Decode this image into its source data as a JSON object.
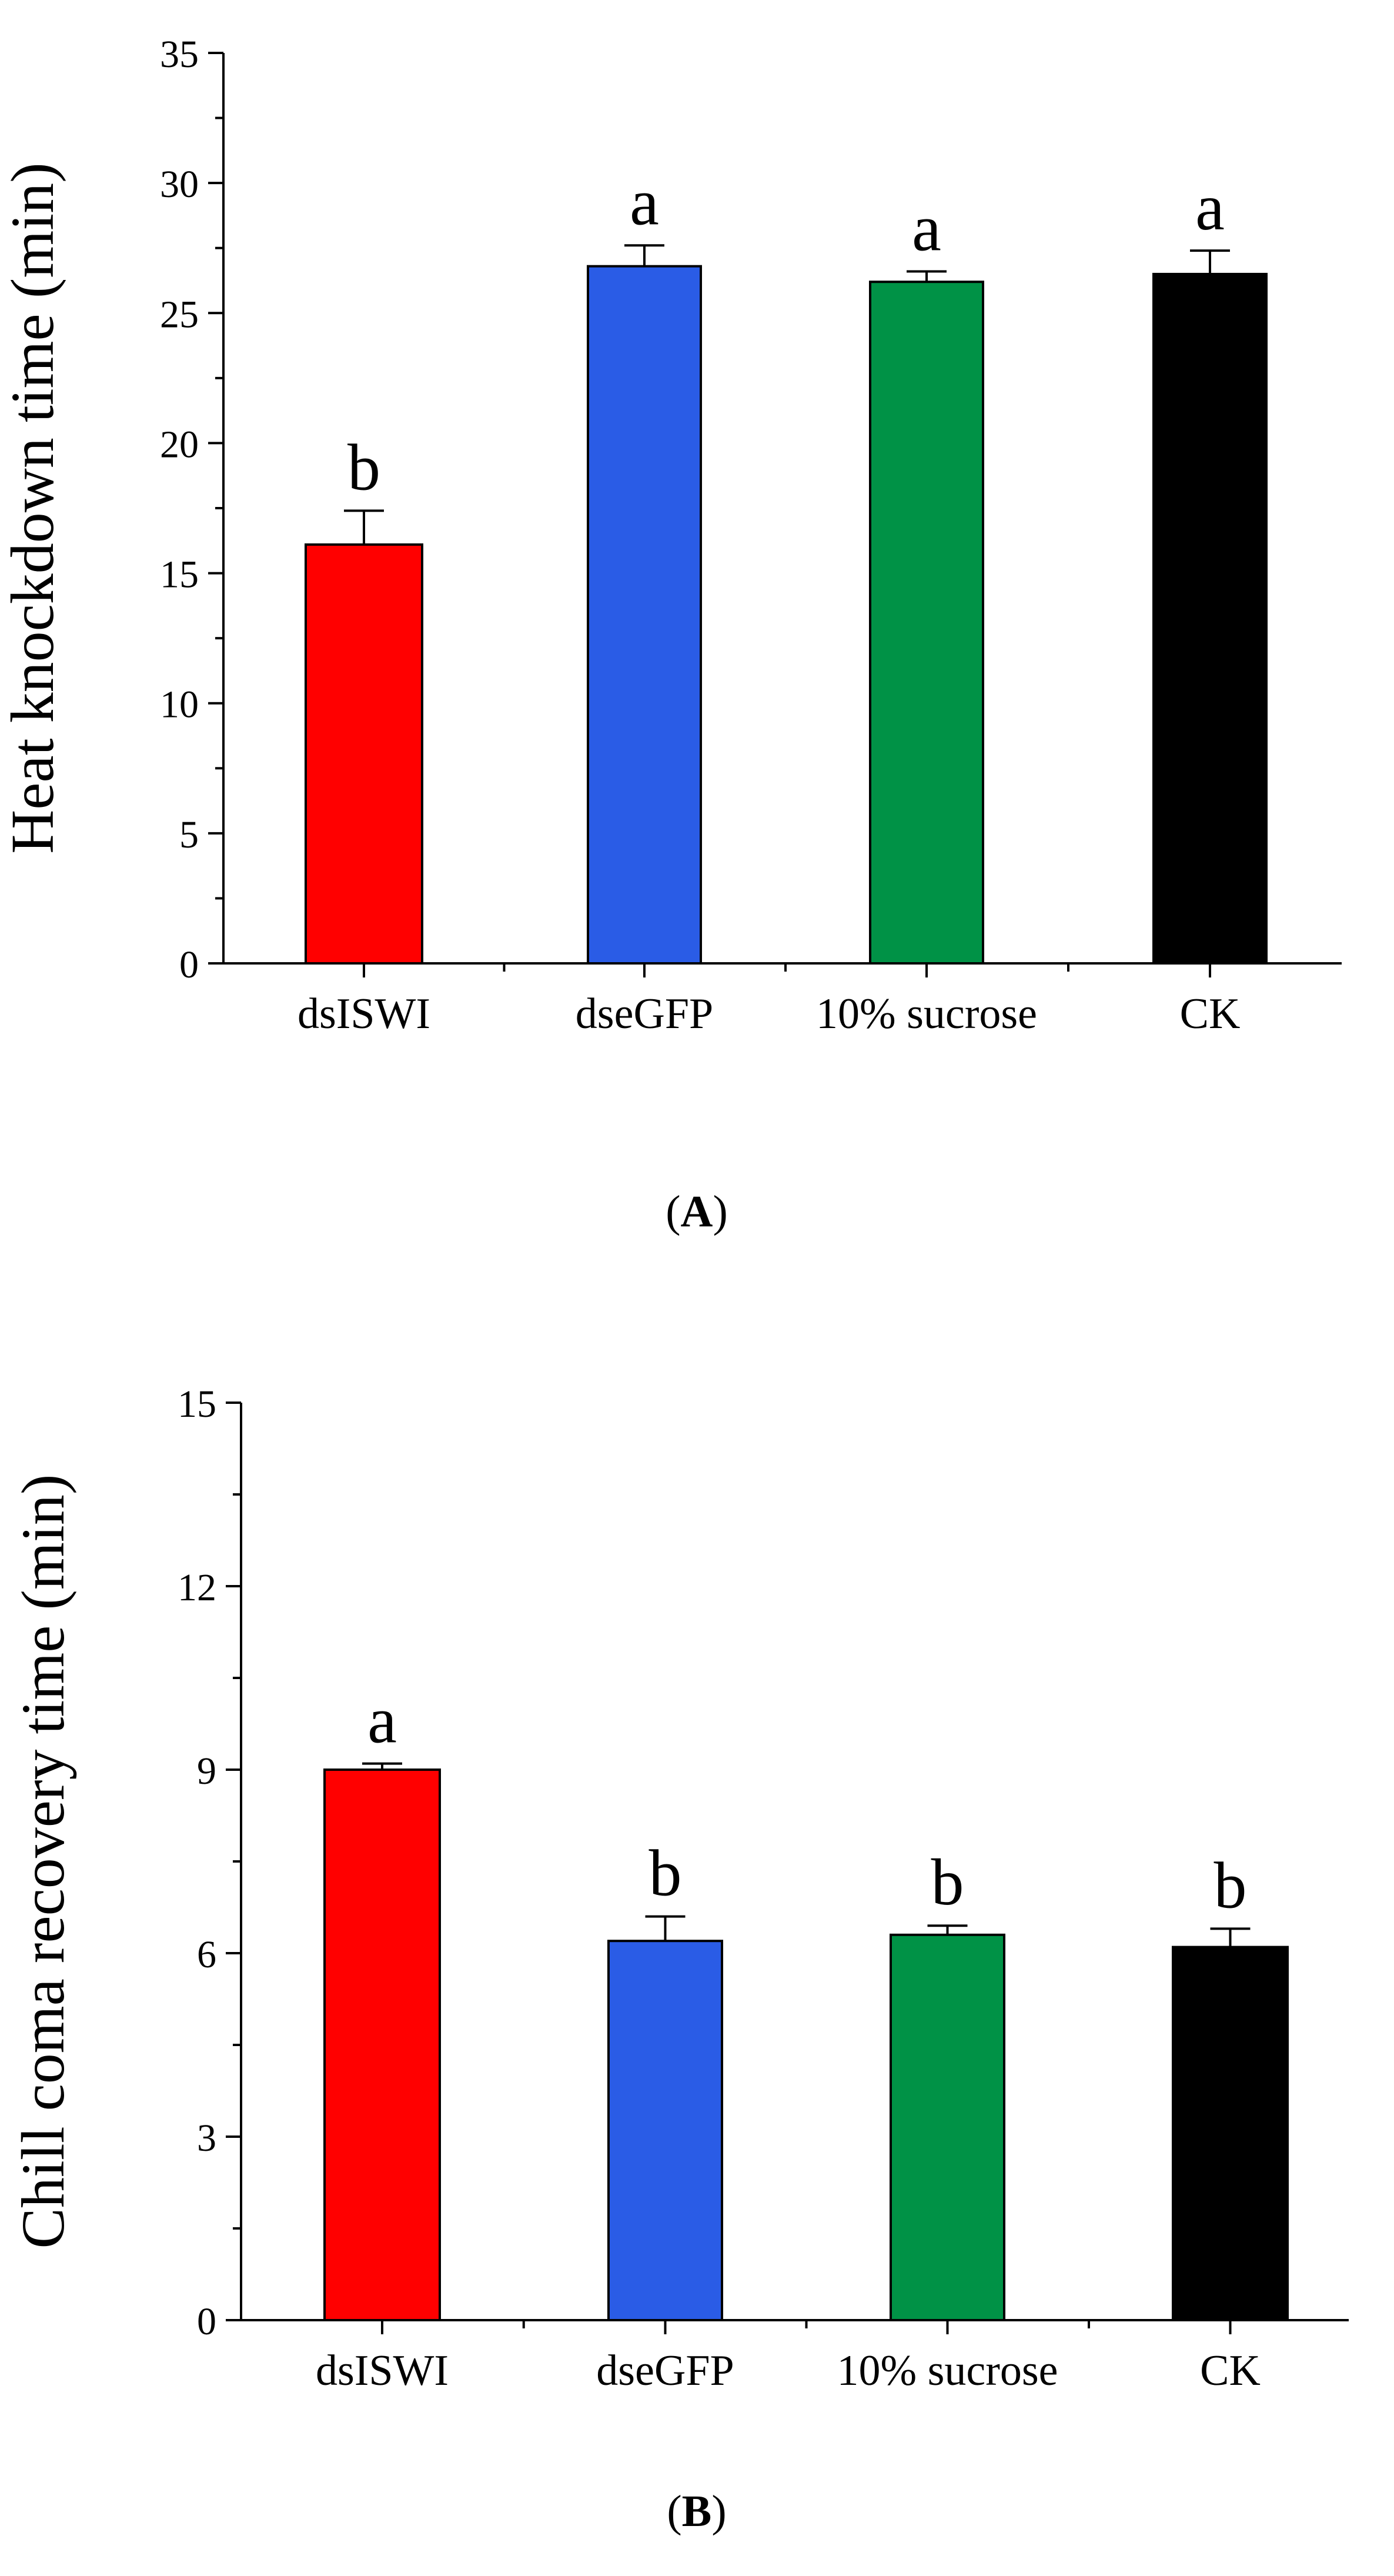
{
  "chart_data": [
    {
      "panel": "A",
      "type": "bar",
      "ylabel": "Heat knockdown time (min)",
      "xlabel": "",
      "ylim": [
        0,
        35
      ],
      "yticks": [
        0,
        5,
        10,
        15,
        20,
        25,
        30,
        35
      ],
      "categories": [
        "dsISWI",
        "dseGFP",
        "10% sucrose",
        "CK"
      ],
      "values": [
        16.1,
        26.8,
        26.2,
        26.5
      ],
      "errors": [
        1.3,
        0.8,
        0.4,
        0.9
      ],
      "letters": [
        "b",
        "a",
        "a",
        "a"
      ],
      "colors": [
        "#ff0000",
        "#2a5ce6",
        "#009246",
        "#000000"
      ],
      "caption_open": "(",
      "caption_letter": "A",
      "caption_close": ")"
    },
    {
      "panel": "B",
      "type": "bar",
      "ylabel": "Chill coma recovery time (min)",
      "xlabel": "",
      "ylim": [
        0,
        15
      ],
      "yticks": [
        0,
        3,
        6,
        9,
        12,
        15
      ],
      "categories": [
        "dsISWI",
        "dseGFP",
        "10% sucrose",
        "CK"
      ],
      "values": [
        9.0,
        6.2,
        6.3,
        6.1
      ],
      "errors": [
        0.1,
        0.4,
        0.15,
        0.3
      ],
      "letters": [
        "a",
        "b",
        "b",
        "b"
      ],
      "colors": [
        "#ff0000",
        "#2a5ce6",
        "#009246",
        "#000000"
      ],
      "caption_open": "(",
      "caption_letter": "B",
      "caption_close": ")"
    }
  ]
}
